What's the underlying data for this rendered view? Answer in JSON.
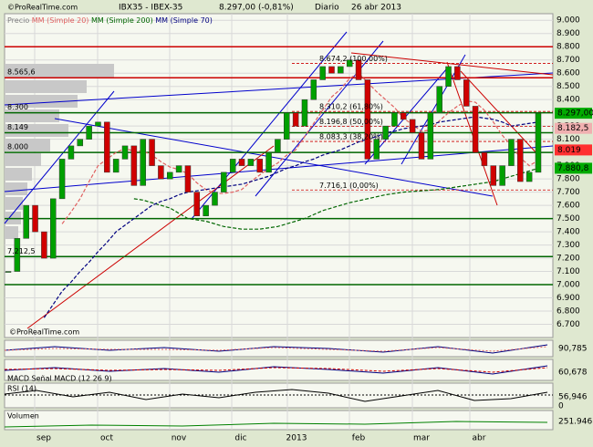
{
  "chart_data": {
    "type": "candlestick",
    "title": "IBX35 - IBEX-35",
    "last_price": "8.297,00 (-0,81%)",
    "period": "Diario",
    "date": "26 abr 2013",
    "watermark": "©ProRealTime.com",
    "up_color": "#00a000",
    "down_color": "#d00000",
    "ylim": [
      6600,
      9050
    ],
    "yticks": [
      {
        "value": 9000,
        "label": "9.000"
      },
      {
        "value": 8900,
        "label": "8.900"
      },
      {
        "value": 8800,
        "label": "8.800"
      },
      {
        "value": 8700,
        "label": "8.700"
      },
      {
        "value": 8600,
        "label": "8.600"
      },
      {
        "value": 8500,
        "label": "8.500"
      },
      {
        "value": 8400,
        "label": "8.400"
      },
      {
        "value": 8300,
        "label": "8.300"
      },
      {
        "value": 8200,
        "label": "8.200"
      },
      {
        "value": 8100,
        "label": "8.100"
      },
      {
        "value": 8000,
        "label": "8.000"
      },
      {
        "value": 7900,
        "label": "7.900"
      },
      {
        "value": 7800,
        "label": "7.800"
      },
      {
        "value": 7700,
        "label": "7.700"
      },
      {
        "value": 7600,
        "label": "7.600"
      },
      {
        "value": 7500,
        "label": "7.500"
      },
      {
        "value": 7400,
        "label": "7.400"
      },
      {
        "value": 7300,
        "label": "7.300"
      },
      {
        "value": 7200,
        "label": "7.200"
      },
      {
        "value": 7100,
        "label": "7.100"
      },
      {
        "value": 7000,
        "label": "7.000"
      },
      {
        "value": 6900,
        "label": "6.900"
      },
      {
        "value": 6800,
        "label": "6.800"
      },
      {
        "value": 6700,
        "label": "6.700"
      }
    ],
    "xlabels": [
      "sep",
      "oct",
      "nov",
      "dic",
      "2013",
      "feb",
      "mar",
      "abr"
    ],
    "series": [
      {
        "name": "Precio",
        "color": "#808080",
        "values": [
          7100,
          7350,
          7600,
          7400,
          7200,
          7650,
          7950,
          8050,
          8100,
          8200,
          8230,
          7850,
          7950,
          8050,
          7750,
          8100,
          7900,
          7800,
          7850,
          7900,
          7700,
          7520,
          7600,
          7700,
          7850,
          7950,
          7900,
          7950,
          7850,
          8000,
          8100,
          8300,
          8200,
          8400,
          8550,
          8650,
          8600,
          8650,
          8700,
          8550,
          7950,
          8100,
          8200,
          8300,
          8250,
          8150,
          7950,
          8300,
          8500,
          8650,
          8550,
          8350,
          8000,
          7900,
          7750,
          7900,
          8100,
          7780,
          7850,
          8297
        ]
      },
      {
        "name": "MM (Simple 20)",
        "color": "#e06060",
        "values": [
          null,
          null,
          null,
          null,
          null,
          null,
          7460,
          7550,
          7650,
          7780,
          7900,
          7950,
          8000,
          8030,
          8010,
          8010,
          7980,
          7930,
          7890,
          7870,
          7840,
          7770,
          7720,
          7690,
          7690,
          7700,
          7720,
          7780,
          7830,
          7880,
          7920,
          7980,
          8020,
          8120,
          8220,
          8320,
          8420,
          8480,
          8560,
          8600,
          8530,
          8460,
          8400,
          8340,
          8260,
          8210,
          8160,
          8170,
          8240,
          8300,
          8350,
          8390,
          8380,
          8320,
          8230,
          8130,
          8050,
          7960,
          7900,
          7940
        ]
      },
      {
        "name": "MM (Simple 200)",
        "color": "#006600",
        "values": [
          null,
          null,
          null,
          null,
          null,
          null,
          null,
          null,
          null,
          null,
          null,
          null,
          null,
          null,
          7650,
          7640,
          7620,
          7600,
          7580,
          7540,
          7500,
          7490,
          7480,
          7460,
          7440,
          7430,
          7420,
          7420,
          7420,
          7430,
          7440,
          7460,
          7480,
          7500,
          7530,
          7560,
          7580,
          7600,
          7620,
          7635,
          7650,
          7665,
          7680,
          7690,
          7700,
          7705,
          7710,
          7715,
          7720,
          7730,
          7740,
          7750,
          7760,
          7770,
          7780,
          7800,
          7820,
          7840,
          7860,
          7880.8
        ]
      },
      {
        "name": "MM (Simple 70)",
        "color": "#000080",
        "values": [
          null,
          null,
          null,
          null,
          6750,
          6850,
          6950,
          7020,
          7100,
          7170,
          7250,
          7320,
          7400,
          7450,
          7500,
          7550,
          7600,
          7630,
          7650,
          7680,
          7700,
          7710,
          7720,
          7730,
          7740,
          7750,
          7760,
          7780,
          7800,
          7820,
          7850,
          7880,
          7900,
          7930,
          7950,
          7980,
          8000,
          8020,
          8050,
          8080,
          8100,
          8120,
          8150,
          8160,
          8180,
          8190,
          8200,
          8210,
          8230,
          8240,
          8250,
          8260,
          8270,
          8260,
          8250,
          8230,
          8200,
          8210,
          8220,
          8230
        ]
      }
    ],
    "levels": [
      {
        "value": 8800,
        "color": "#cc0000"
      },
      {
        "value": 8565.6,
        "color": "#cc0000",
        "label": "8.565,6"
      },
      {
        "value": 8300,
        "color": "#006600",
        "label": "8.300"
      },
      {
        "value": 8149,
        "color": "#006600",
        "label": "8.149"
      },
      {
        "value": 8000,
        "color": "#006600",
        "label": "8.000"
      },
      {
        "value": 7500,
        "color": "#006600"
      },
      {
        "value": 7212.5,
        "color": "#006600",
        "label": "7.212,5"
      },
      {
        "value": 7000,
        "color": "#006600"
      }
    ],
    "fibonacci": [
      {
        "value": 8674.2,
        "label": "8.674,2 (100,00%)"
      },
      {
        "value": 8310.2,
        "label": "8.310,2 (61,80%)"
      },
      {
        "value": 8196.8,
        "label": "8.196,8 (50,00%)"
      },
      {
        "value": 8083.3,
        "label": "8.083,3 (38,20%)"
      },
      {
        "value": 7716.1,
        "label": "7.716,1 (0,00%)"
      }
    ],
    "price_badges": [
      {
        "value": 8297,
        "label": "8.297,00",
        "color": "#00aa00"
      },
      {
        "value": 8182.5,
        "label": "8.182,5",
        "color": "#f0b0b0"
      },
      {
        "value": 8019,
        "label": "8.019",
        "color": "#ff3030"
      },
      {
        "value": 7880.8,
        "label": "7.880,8",
        "color": "#00aa00"
      }
    ],
    "panels": [
      {
        "value_label": "90,785"
      },
      {
        "label": "MACD  Señal MACD (12 26 9)",
        "value_label": "60,678"
      },
      {
        "label": "RSI (14)",
        "value_label": "56,946",
        "zero_label": "0"
      },
      {
        "label": "Volumen",
        "value_label": "251.946"
      }
    ]
  }
}
